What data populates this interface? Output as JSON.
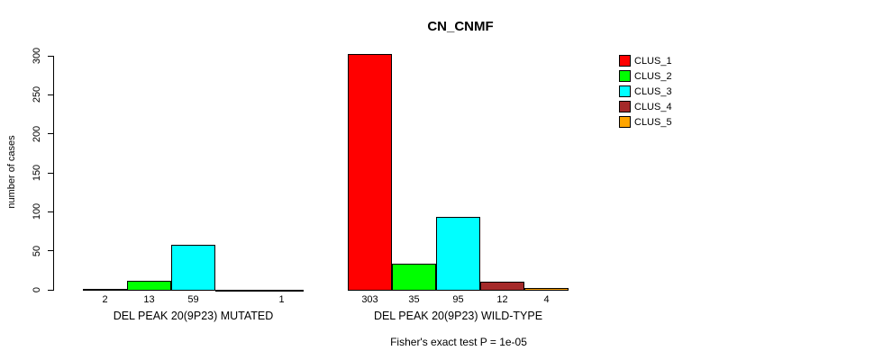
{
  "chart_data": {
    "type": "bar",
    "title": "CN_CNMF",
    "subtitle": "Fisher's exact test P = 1e-05",
    "ylabel": "number of cases",
    "ylim": [
      0,
      300
    ],
    "yticks": [
      0,
      50,
      100,
      150,
      200,
      250,
      300
    ],
    "grid": false,
    "legend_position": "right",
    "legend": [
      {
        "label": "CLUS_1",
        "color": "#FF0000"
      },
      {
        "label": "CLUS_2",
        "color": "#00FF00"
      },
      {
        "label": "CLUS_3",
        "color": "#00FFFF"
      },
      {
        "label": "CLUS_4",
        "color": "#A52A2A"
      },
      {
        "label": "CLUS_5",
        "color": "#FFA500"
      }
    ],
    "groups": [
      {
        "label": "DEL PEAK 20(9P23) MUTATED",
        "values": [
          2,
          13,
          59,
          0,
          1
        ],
        "value_labels": [
          "2",
          "13",
          "59",
          "",
          "1"
        ]
      },
      {
        "label": "DEL PEAK 20(9P23) WILD-TYPE",
        "values": [
          303,
          35,
          95,
          12,
          4
        ],
        "value_labels": [
          "303",
          "35",
          "95",
          "12",
          "4"
        ]
      }
    ]
  }
}
